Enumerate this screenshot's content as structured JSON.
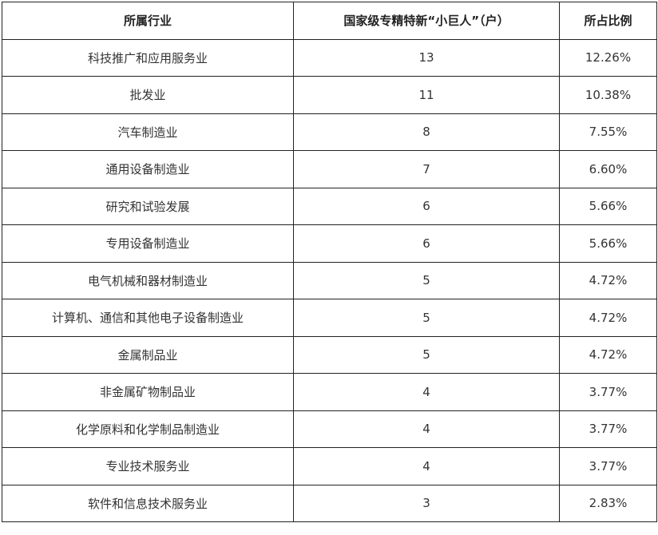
{
  "table": {
    "headers": [
      "所属行业",
      "国家级专精特新“小巨人”（户）",
      "所占比例"
    ],
    "rows": [
      [
        "科技推广和应用服务业",
        "13",
        "12.26%"
      ],
      [
        "批发业",
        "11",
        "10.38%"
      ],
      [
        "汽车制造业",
        "8",
        "7.55%"
      ],
      [
        "通用设备制造业",
        "7",
        "6.60%"
      ],
      [
        "研究和试验发展",
        "6",
        "5.66%"
      ],
      [
        "专用设备制造业",
        "6",
        "5.66%"
      ],
      [
        "电气机械和器材制造业",
        "5",
        "4.72%"
      ],
      [
        "计算机、通信和其他电子设备制造业",
        "5",
        "4.72%"
      ],
      [
        "金属制品业",
        "5",
        "4.72%"
      ],
      [
        "非金属矿物制品业",
        "4",
        "3.77%"
      ],
      [
        "化学原料和化学制品制造业",
        "4",
        "3.77%"
      ],
      [
        "专业技术服务业",
        "4",
        "3.77%"
      ],
      [
        "软件和信息技术服务业",
        "3",
        "2.83%"
      ]
    ]
  }
}
